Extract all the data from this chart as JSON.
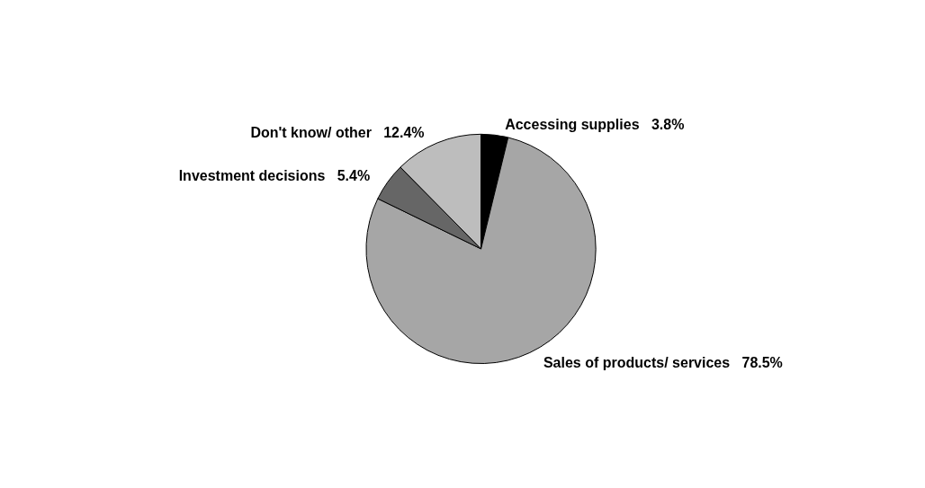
{
  "chart_data": {
    "type": "pie",
    "categories": [
      "Accessing supplies",
      "Sales of products/ services",
      "Investment decisions",
      "Don't know/ other"
    ],
    "values": [
      3.8,
      78.5,
      5.4,
      12.4
    ],
    "value_labels": [
      "3.8%",
      "78.5%",
      "5.4%",
      "12.4%"
    ],
    "colors": [
      "#000000",
      "#a6a6a6",
      "#666666",
      "#bdbdbd"
    ],
    "legend": false
  }
}
